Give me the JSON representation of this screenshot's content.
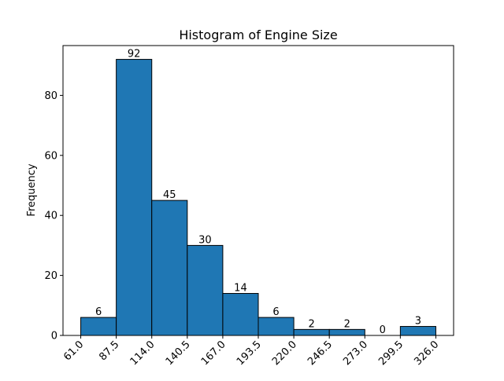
{
  "chart_data": {
    "type": "bar",
    "title": "Histogram of Engine Size",
    "xlabel": "",
    "ylabel": "Frequency",
    "bin_edges": [
      61.0,
      87.5,
      114.0,
      140.5,
      167.0,
      193.5,
      220.0,
      246.5,
      273.0,
      299.5,
      326.0
    ],
    "bin_edge_labels": [
      "61.0",
      "87.5",
      "114.0",
      "140.5",
      "167.0",
      "193.5",
      "220.0",
      "246.5",
      "273.0",
      "299.5",
      "326.0"
    ],
    "values": [
      6,
      92,
      45,
      30,
      14,
      6,
      2,
      2,
      0,
      3
    ],
    "xlim": [
      47.75,
      339.25
    ],
    "ylim": [
      0,
      96.6
    ],
    "yticks": [
      0,
      20,
      40,
      60,
      80
    ],
    "grid": false,
    "colors": {
      "bar_fill": "#1f77b4",
      "bar_edge": "#000000"
    }
  }
}
